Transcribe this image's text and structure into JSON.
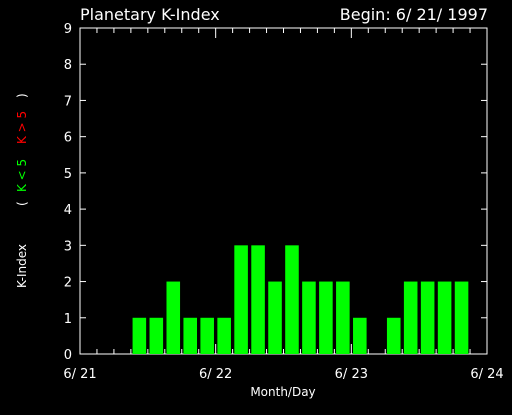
{
  "header": {
    "title": "Planetary K-Index",
    "begin": "Begin: 6/ 21/ 1997"
  },
  "chart_data": {
    "type": "bar",
    "title": "Planetary K-Index",
    "xlabel": "Month/Day",
    "ylabel": "K-Index",
    "ylabel_legend": {
      "open": "(",
      "low": "K < 5",
      "high": "K > 5",
      "close": ")"
    },
    "ylim": [
      0,
      9
    ],
    "yticks": [
      "0",
      "1",
      "2",
      "3",
      "4",
      "5",
      "6",
      "7",
      "8",
      "9"
    ],
    "xlim": [
      0,
      24
    ],
    "xticks": [
      {
        "x": 0,
        "label": "6/ 21"
      },
      {
        "x": 8,
        "label": "6/ 22"
      },
      {
        "x": 16,
        "label": "6/ 23"
      },
      {
        "x": 24,
        "label": "6/ 24"
      }
    ],
    "bar_width_intervals": 0.8,
    "series": [
      {
        "x": [
          0,
          1,
          2,
          3,
          4,
          5,
          6,
          7,
          8,
          9,
          10,
          11,
          12,
          13,
          14,
          15,
          16,
          17,
          18,
          19,
          20,
          21,
          22,
          23
        ],
        "values": [
          0,
          0,
          0,
          1,
          1,
          2,
          1,
          1,
          1,
          3,
          3,
          2,
          3,
          2,
          2,
          2,
          1,
          0,
          1,
          2,
          2,
          2,
          2,
          0
        ]
      }
    ],
    "colors": {
      "background": "#000000",
      "axis": "#ffffff",
      "low": "#00ff00",
      "high": "#ff0000"
    },
    "threshold": 5,
    "grid": false
  }
}
